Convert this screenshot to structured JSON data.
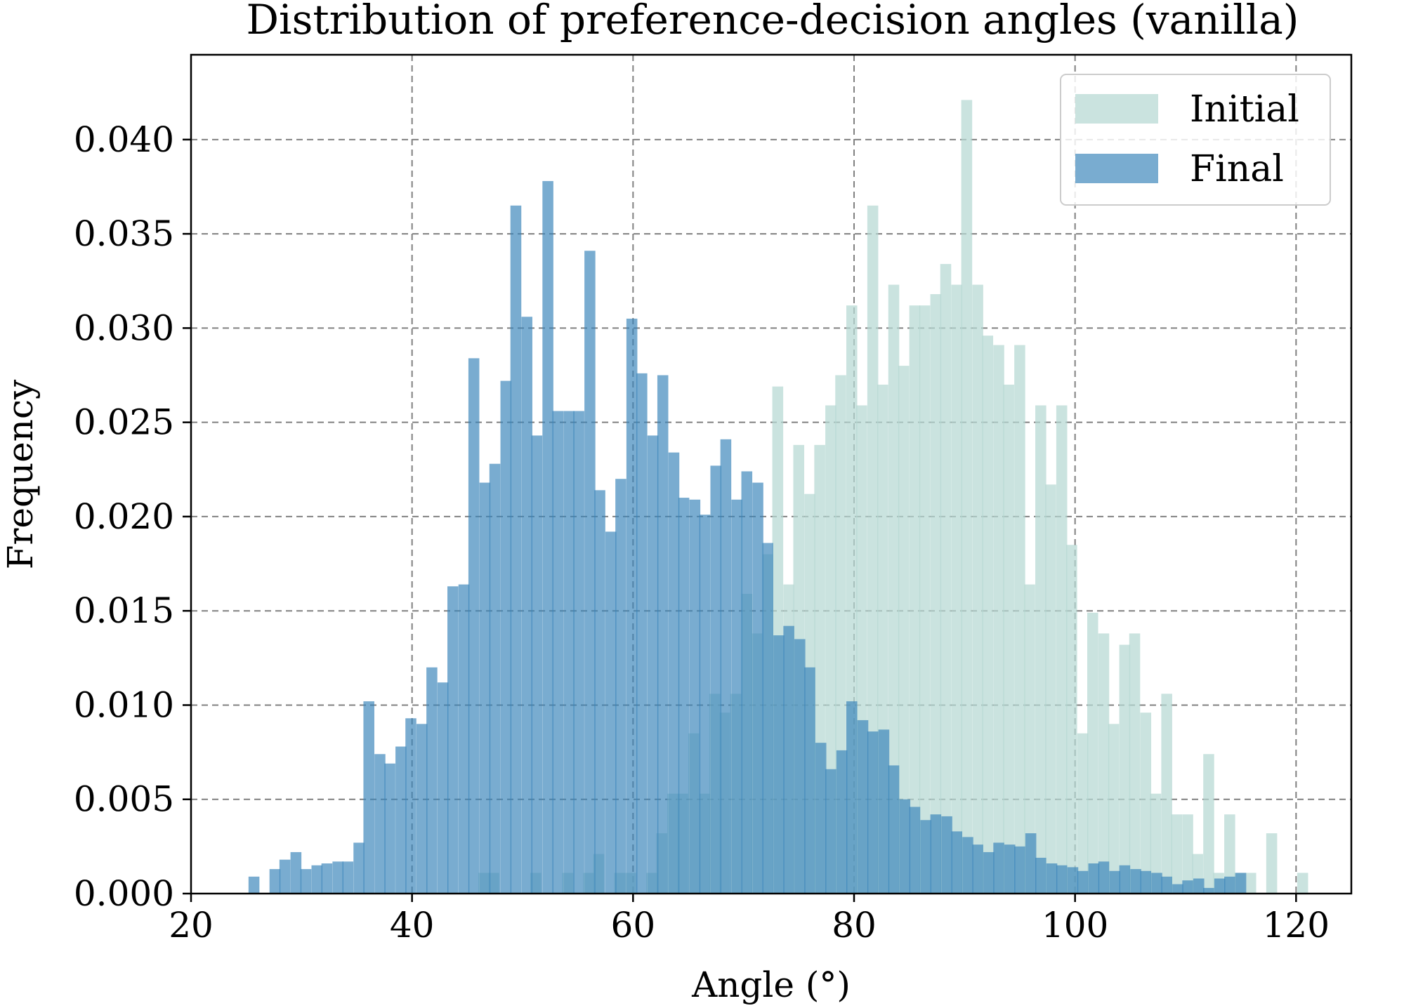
{
  "chart_data": {
    "type": "bar",
    "title": "Distribution of preference-decision angles (vanilla)",
    "xlabel": "Angle (°)",
    "ylabel": "Frequency",
    "xlim": [
      20,
      125
    ],
    "ylim": [
      0,
      0.0445
    ],
    "bin_width": 0.95,
    "grid": true,
    "legend_position": "top-right",
    "x_ticks": [
      {
        "value": 20,
        "label": "20"
      },
      {
        "value": 40,
        "label": "40"
      },
      {
        "value": 60,
        "label": "60"
      },
      {
        "value": 80,
        "label": "80"
      },
      {
        "value": 100,
        "label": "100"
      },
      {
        "value": 120,
        "label": "120"
      }
    ],
    "y_ticks": [
      {
        "value": 0.0,
        "label": "0.000"
      },
      {
        "value": 0.005,
        "label": "0.005"
      },
      {
        "value": 0.01,
        "label": "0.010"
      },
      {
        "value": 0.015,
        "label": "0.015"
      },
      {
        "value": 0.02,
        "label": "0.020"
      },
      {
        "value": 0.025,
        "label": "0.025"
      },
      {
        "value": 0.03,
        "label": "0.030"
      },
      {
        "value": 0.035,
        "label": "0.035"
      },
      {
        "value": 0.04,
        "label": "0.040"
      }
    ],
    "series": [
      {
        "name": "Initial",
        "color": "#b5d8d2",
        "opacity": 0.72,
        "x": [
          46.0,
          46.9,
          50.7,
          53.6,
          55.5,
          56.4,
          58.3,
          59.3,
          61.2,
          62.1,
          63.1,
          64.0,
          65.0,
          66.0,
          66.9,
          67.8,
          68.8,
          69.8,
          70.7,
          71.7,
          72.6,
          73.6,
          74.5,
          75.5,
          76.4,
          77.4,
          78.3,
          79.3,
          80.2,
          81.2,
          82.1,
          83.1,
          84.0,
          85.0,
          85.9,
          86.9,
          87.8,
          88.8,
          89.7,
          90.7,
          91.6,
          92.6,
          93.5,
          94.5,
          95.4,
          96.4,
          97.3,
          98.3,
          99.2,
          100.2,
          101.1,
          102.1,
          103.0,
          104.0,
          104.9,
          105.9,
          106.8,
          107.8,
          108.7,
          109.7,
          110.6,
          111.6,
          112.5,
          113.5,
          114.4,
          115.4,
          117.3,
          120.1
        ],
        "values": [
          0.0011,
          0.0011,
          0.0011,
          0.0011,
          0.0011,
          0.0021,
          0.0011,
          0.0011,
          0.0011,
          0.0032,
          0.0053,
          0.0053,
          0.0085,
          0.0053,
          0.0106,
          0.0096,
          0.0106,
          0.0159,
          0.0138,
          0.018,
          0.0269,
          0.0164,
          0.0238,
          0.0212,
          0.0238,
          0.0259,
          0.0275,
          0.0312,
          0.0259,
          0.0365,
          0.027,
          0.0323,
          0.028,
          0.0312,
          0.0312,
          0.0318,
          0.0334,
          0.0323,
          0.0421,
          0.0323,
          0.0296,
          0.0291,
          0.027,
          0.0291,
          0.0164,
          0.0259,
          0.0217,
          0.0259,
          0.0185,
          0.0085,
          0.0149,
          0.0138,
          0.009,
          0.0132,
          0.0138,
          0.0096,
          0.0053,
          0.0106,
          0.0042,
          0.0042,
          0.0021,
          0.0074,
          0.0011,
          0.0042,
          0.0011,
          0.0011,
          0.0032,
          0.0011
        ]
      },
      {
        "name": "Final",
        "color": "#3a85ba",
        "opacity": 0.68,
        "x": [
          25.2,
          27.1,
          28.0,
          29.0,
          29.9,
          30.9,
          31.8,
          32.8,
          33.7,
          34.7,
          35.6,
          36.6,
          37.5,
          38.5,
          39.4,
          40.4,
          41.3,
          42.3,
          43.2,
          44.2,
          45.1,
          46.1,
          47.0,
          48.0,
          48.9,
          49.9,
          50.8,
          51.8,
          52.7,
          53.7,
          54.6,
          55.6,
          56.5,
          57.5,
          58.4,
          59.4,
          60.3,
          61.3,
          62.2,
          63.2,
          64.1,
          65.1,
          66.0,
          67.0,
          67.9,
          68.9,
          69.8,
          70.8,
          71.7,
          72.7,
          73.6,
          74.6,
          75.5,
          76.5,
          77.4,
          78.4,
          79.3,
          80.3,
          81.2,
          82.2,
          83.1,
          84.1,
          85.0,
          86.0,
          86.9,
          87.9,
          88.8,
          89.8,
          90.7,
          91.7,
          92.6,
          93.6,
          94.5,
          95.5,
          96.4,
          97.4,
          98.3,
          99.3,
          100.2,
          101.2,
          102.1,
          103.1,
          104.0,
          105.0,
          105.9,
          106.9,
          107.8,
          108.8,
          109.7,
          110.7,
          111.6,
          112.6,
          113.5,
          114.5
        ],
        "values": [
          0.0009,
          0.0013,
          0.0018,
          0.0022,
          0.0013,
          0.0015,
          0.0016,
          0.0017,
          0.0017,
          0.0027,
          0.0102,
          0.0074,
          0.0069,
          0.0078,
          0.0093,
          0.009,
          0.012,
          0.0112,
          0.0163,
          0.0164,
          0.0284,
          0.0218,
          0.0228,
          0.0272,
          0.0365,
          0.0306,
          0.0243,
          0.0378,
          0.0256,
          0.0256,
          0.0256,
          0.0341,
          0.0214,
          0.0192,
          0.022,
          0.0305,
          0.0276,
          0.0243,
          0.0275,
          0.0234,
          0.021,
          0.0209,
          0.0201,
          0.0227,
          0.0241,
          0.0209,
          0.0224,
          0.0218,
          0.0186,
          0.0137,
          0.0142,
          0.0135,
          0.012,
          0.008,
          0.0066,
          0.0076,
          0.0102,
          0.0092,
          0.0086,
          0.0087,
          0.0068,
          0.005,
          0.0046,
          0.0039,
          0.0042,
          0.0041,
          0.0033,
          0.003,
          0.0026,
          0.0022,
          0.0027,
          0.0026,
          0.0025,
          0.0032,
          0.0019,
          0.0016,
          0.0015,
          0.0014,
          0.0012,
          0.0016,
          0.0017,
          0.0012,
          0.0015,
          0.0013,
          0.0012,
          0.0011,
          0.0009,
          0.0005,
          0.0007,
          0.0008,
          0.0003,
          0.0008,
          0.0009,
          0.0011
        ]
      }
    ]
  }
}
